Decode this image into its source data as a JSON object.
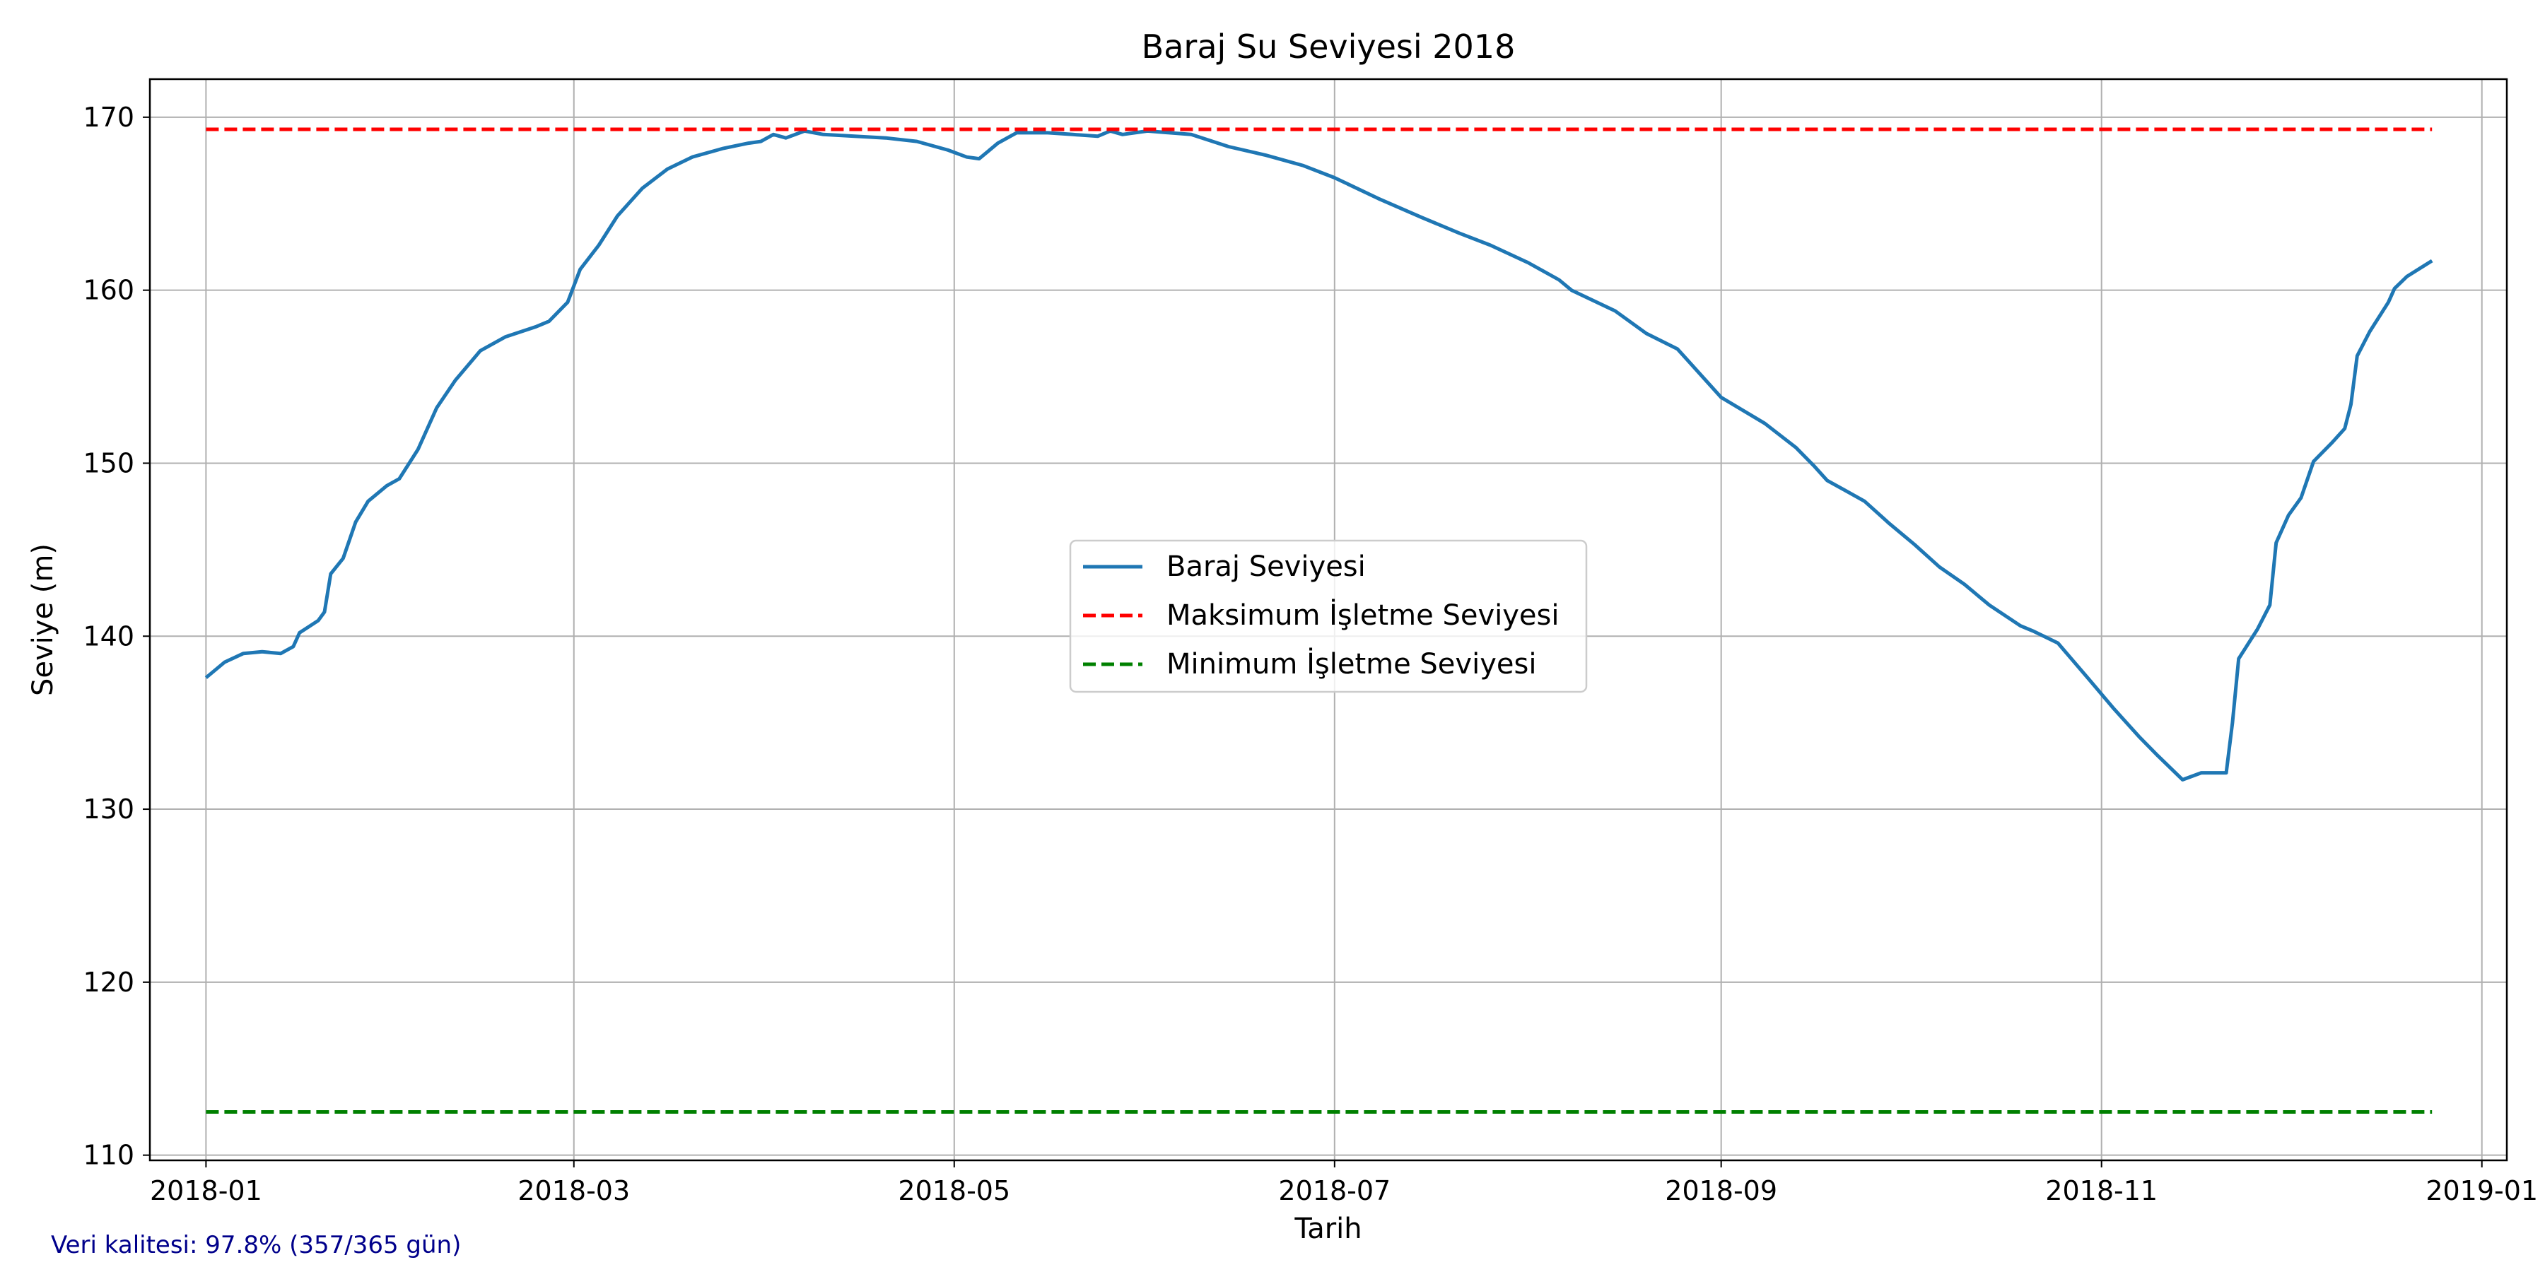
{
  "chart_data": {
    "type": "line",
    "title": "Baraj Su Seviyesi 2018",
    "xlabel": "Tarih",
    "ylabel": "Seviye (m)",
    "xlim": [
      "2017-12-23",
      "2019-01-05"
    ],
    "ylim": [
      109.7,
      172.2
    ],
    "x_ticks": [
      "2018-01",
      "2018-03",
      "2018-05",
      "2018-07",
      "2018-09",
      "2018-11",
      "2019-01"
    ],
    "x_tick_dates": [
      "2018-01-01",
      "2018-03-01",
      "2018-05-01",
      "2018-07-01",
      "2018-09-01",
      "2018-11-01",
      "2019-01-01"
    ],
    "y_ticks": [
      110,
      120,
      130,
      140,
      150,
      160,
      170
    ],
    "grid": true,
    "legend_position": "center",
    "series": [
      {
        "name": "Baraj Seviyesi",
        "color": "#1f77b4",
        "style": "solid",
        "points": [
          [
            "2018-01-01",
            137.6
          ],
          [
            "2018-01-04",
            138.5
          ],
          [
            "2018-01-07",
            139.0
          ],
          [
            "2018-01-10",
            139.1
          ],
          [
            "2018-01-13",
            139.0
          ],
          [
            "2018-01-15",
            139.4
          ],
          [
            "2018-01-16",
            140.2
          ],
          [
            "2018-01-19",
            140.9
          ],
          [
            "2018-01-20",
            141.4
          ],
          [
            "2018-01-21",
            143.6
          ],
          [
            "2018-01-23",
            144.5
          ],
          [
            "2018-01-25",
            146.6
          ],
          [
            "2018-01-27",
            147.8
          ],
          [
            "2018-01-30",
            148.7
          ],
          [
            "2018-02-01",
            149.1
          ],
          [
            "2018-02-04",
            150.8
          ],
          [
            "2018-02-07",
            153.2
          ],
          [
            "2018-02-10",
            154.8
          ],
          [
            "2018-02-14",
            156.5
          ],
          [
            "2018-02-18",
            157.3
          ],
          [
            "2018-02-23",
            157.9
          ],
          [
            "2018-02-25",
            158.2
          ],
          [
            "2018-02-28",
            159.3
          ],
          [
            "2018-03-02",
            161.2
          ],
          [
            "2018-03-05",
            162.6
          ],
          [
            "2018-03-08",
            164.3
          ],
          [
            "2018-03-12",
            165.9
          ],
          [
            "2018-03-16",
            167.0
          ],
          [
            "2018-03-20",
            167.7
          ],
          [
            "2018-03-25",
            168.2
          ],
          [
            "2018-03-29",
            168.5
          ],
          [
            "2018-03-31",
            168.6
          ],
          [
            "2018-04-02",
            169.0
          ],
          [
            "2018-04-04",
            168.8
          ],
          [
            "2018-04-07",
            169.2
          ],
          [
            "2018-04-10",
            169.0
          ],
          [
            "2018-04-15",
            168.9
          ],
          [
            "2018-04-20",
            168.8
          ],
          [
            "2018-04-25",
            168.6
          ],
          [
            "2018-04-30",
            168.1
          ],
          [
            "2018-05-03",
            167.7
          ],
          [
            "2018-05-05",
            167.6
          ],
          [
            "2018-05-08",
            168.5
          ],
          [
            "2018-05-11",
            169.1
          ],
          [
            "2018-05-16",
            169.1
          ],
          [
            "2018-05-20",
            169.0
          ],
          [
            "2018-05-24",
            168.9
          ],
          [
            "2018-05-26",
            169.2
          ],
          [
            "2018-05-28",
            169.0
          ],
          [
            "2018-06-01",
            169.2
          ],
          [
            "2018-06-08",
            169.0
          ],
          [
            "2018-06-14",
            168.3
          ],
          [
            "2018-06-20",
            167.8
          ],
          [
            "2018-06-26",
            167.2
          ],
          [
            "2018-07-01",
            166.5
          ],
          [
            "2018-07-08",
            165.3
          ],
          [
            "2018-07-15",
            164.2
          ],
          [
            "2018-07-21",
            163.3
          ],
          [
            "2018-07-26",
            162.6
          ],
          [
            "2018-08-01",
            161.6
          ],
          [
            "2018-08-06",
            160.6
          ],
          [
            "2018-08-08",
            160.0
          ],
          [
            "2018-08-15",
            158.8
          ],
          [
            "2018-08-20",
            157.5
          ],
          [
            "2018-08-25",
            156.6
          ],
          [
            "2018-09-01",
            153.8
          ],
          [
            "2018-09-08",
            152.3
          ],
          [
            "2018-09-13",
            150.9
          ],
          [
            "2018-09-16",
            149.8
          ],
          [
            "2018-09-18",
            149.0
          ],
          [
            "2018-09-21",
            148.4
          ],
          [
            "2018-09-24",
            147.8
          ],
          [
            "2018-09-28",
            146.5
          ],
          [
            "2018-10-02",
            145.3
          ],
          [
            "2018-10-06",
            144.0
          ],
          [
            "2018-10-10",
            143.0
          ],
          [
            "2018-10-14",
            141.8
          ],
          [
            "2018-10-19",
            140.6
          ],
          [
            "2018-10-21",
            140.3
          ],
          [
            "2018-10-25",
            139.6
          ],
          [
            "2018-10-30",
            137.5
          ],
          [
            "2018-11-03",
            135.8
          ],
          [
            "2018-11-07",
            134.2
          ],
          [
            "2018-11-10",
            133.1
          ],
          [
            "2018-11-14",
            131.7
          ],
          [
            "2018-11-17",
            132.1
          ],
          [
            "2018-11-21",
            132.1
          ],
          [
            "2018-11-22",
            135.0
          ],
          [
            "2018-11-23",
            138.7
          ],
          [
            "2018-11-26",
            140.4
          ],
          [
            "2018-11-28",
            141.8
          ],
          [
            "2018-11-29",
            145.4
          ],
          [
            "2018-12-01",
            147.0
          ],
          [
            "2018-12-03",
            148.0
          ],
          [
            "2018-12-05",
            150.1
          ],
          [
            "2018-12-08",
            151.2
          ],
          [
            "2018-12-10",
            152.0
          ],
          [
            "2018-12-11",
            153.4
          ],
          [
            "2018-12-12",
            156.2
          ],
          [
            "2018-12-14",
            157.6
          ],
          [
            "2018-12-17",
            159.3
          ],
          [
            "2018-12-18",
            160.1
          ],
          [
            "2018-12-20",
            160.8
          ],
          [
            "2018-12-24",
            161.7
          ]
        ]
      },
      {
        "name": "Maksimum İşletme Seviyesi",
        "color": "#ff0000",
        "style": "dashed",
        "points": [
          [
            "2018-01-01",
            169.3
          ],
          [
            "2018-12-24",
            169.3
          ]
        ]
      },
      {
        "name": "Minimum İşletme Seviyesi",
        "color": "#008000",
        "style": "dashed",
        "points": [
          [
            "2018-01-01",
            112.5
          ],
          [
            "2018-12-24",
            112.5
          ]
        ]
      }
    ],
    "annotation": "Veri kalitesi: 97.8% (357/365 gün)"
  }
}
